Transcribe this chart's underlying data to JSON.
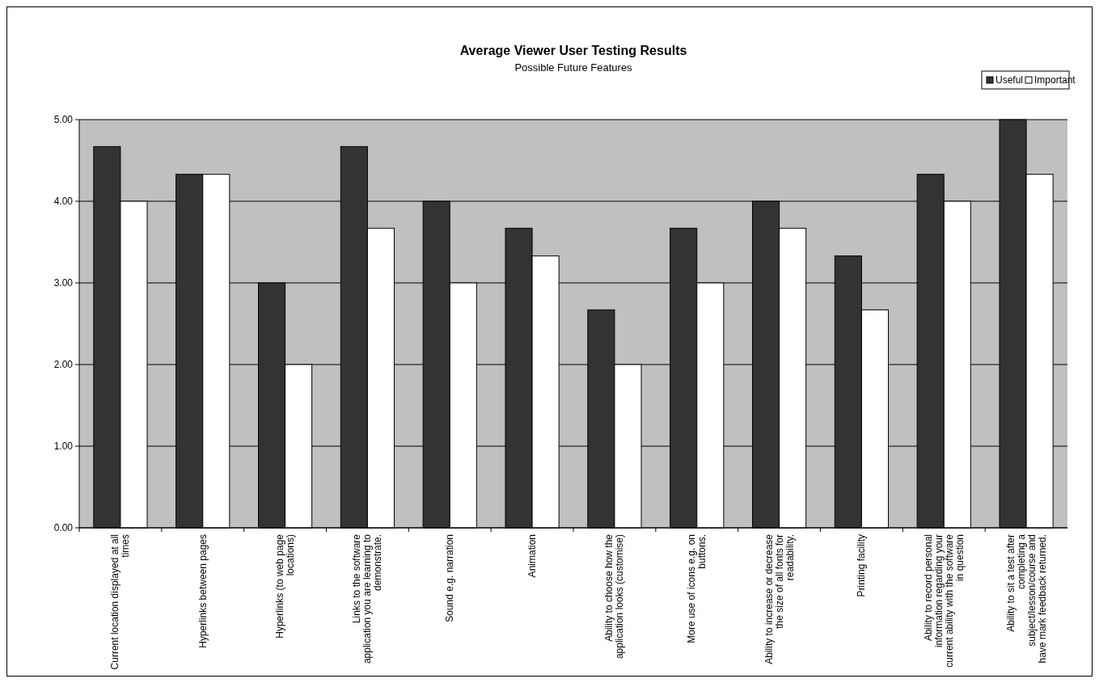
{
  "chart_data": {
    "type": "bar",
    "title": "Average Viewer User Testing Results",
    "subtitle": "Possible Future Features",
    "categories": [
      "Current location displayed at all times",
      "Hyperlinks between pages",
      "Hyperlinks (to web page locations)",
      "Links to the software application you are learning to demonstrate.",
      "Sound e.g. narration",
      "Animation",
      "Ability to choose how the application looks (customise)",
      "More use of icons e.g. on buttons.",
      "Ability to increase or decrease the size of all fonts for readability.",
      "Printing facility",
      "Ability to record personal information regarding your current ability with the software in question",
      "Ability to sit a test after completing a subject/lesson/course and have mark feedback returned."
    ],
    "series": [
      {
        "name": "Useful",
        "color": "#333333",
        "values": [
          4.67,
          4.33,
          3.0,
          4.67,
          4.0,
          3.67,
          2.67,
          3.67,
          4.0,
          3.33,
          4.33,
          5.0
        ]
      },
      {
        "name": "Important",
        "color": "#ffffff",
        "values": [
          4.0,
          4.33,
          2.0,
          3.67,
          3.0,
          3.33,
          2.0,
          3.0,
          3.67,
          2.67,
          4.0,
          4.33
        ]
      }
    ],
    "ylim": [
      0,
      5
    ],
    "yticks": [
      {
        "value": 0,
        "label": "0.00"
      },
      {
        "value": 1,
        "label": "1.00"
      },
      {
        "value": 2,
        "label": "2.00"
      },
      {
        "value": 3,
        "label": "3.00"
      },
      {
        "value": 4,
        "label": "4.00"
      },
      {
        "value": 5,
        "label": "5.00"
      }
    ],
    "grid": "y",
    "legend": "top right"
  }
}
